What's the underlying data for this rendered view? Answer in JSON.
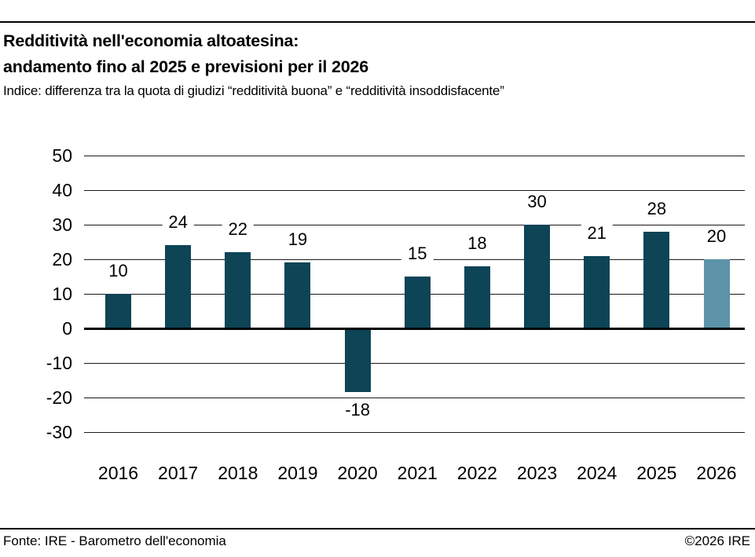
{
  "header": {
    "title_lines": [
      "Redditività nell'economia altoatesina:",
      "andamento fino al 2025 e previsioni per il 2026"
    ],
    "subtitle": "Indice: differenza tra la quota di giudizi “redditività buona” e “redditività insoddisfacente”"
  },
  "chart_data": {
    "type": "bar",
    "title": "Redditività nell'economia altoatesina: andamento fino al 2025 e previsioni per il 2026",
    "xlabel": "",
    "ylabel": "",
    "categories": [
      "2016",
      "2017",
      "2018",
      "2019",
      "2020",
      "2021",
      "2022",
      "2023",
      "2024",
      "2025",
      "2026"
    ],
    "values": [
      10,
      24,
      22,
      19,
      -18,
      15,
      18,
      30,
      21,
      28,
      20
    ],
    "y_ticks": [
      50,
      40,
      30,
      20,
      10,
      0,
      -10,
      -20,
      -30
    ],
    "ylim": [
      -30,
      50
    ],
    "grid": true,
    "legend": "none",
    "colors": {
      "bar_default": "#0d4456",
      "bar_forecast": "#5c93a8"
    },
    "forecast_index": 10,
    "forecast_category": "2026"
  },
  "footer": {
    "source": "Fonte: IRE - Barometro dell'economia",
    "copyright": "©2026 IRE"
  }
}
